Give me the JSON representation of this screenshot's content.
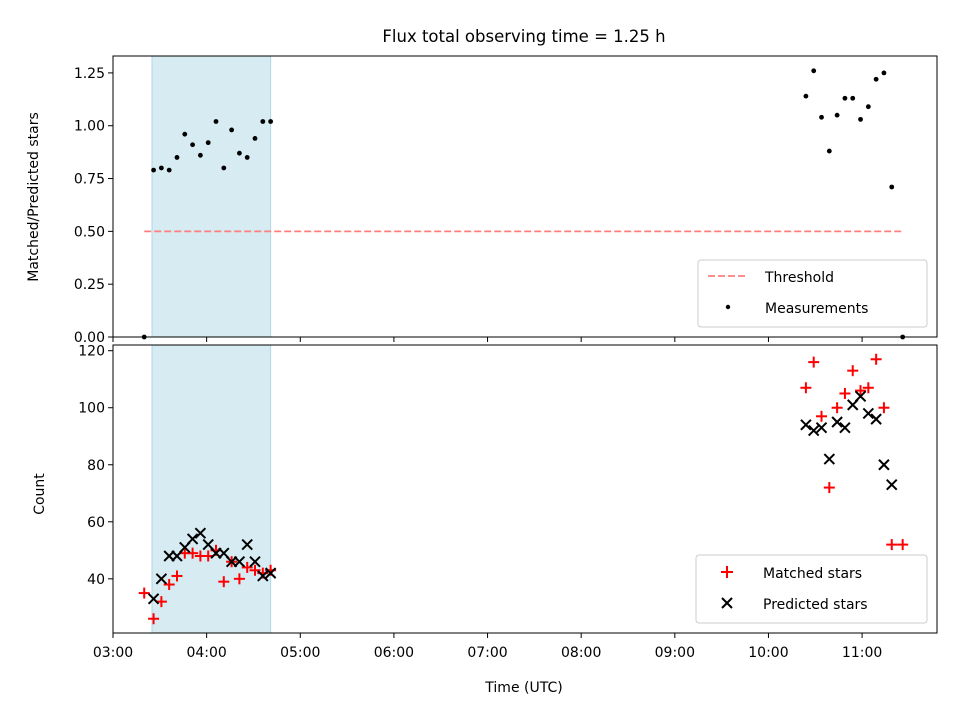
{
  "chart_data": [
    {
      "type": "scatter",
      "title": "Flux total observing time = 1.25 h",
      "xlabel": "",
      "ylabel": "Matched/Predicted stars",
      "ylim": [
        0,
        1.33
      ],
      "xlim": [
        "03:00",
        "11:48"
      ],
      "yticks": [
        "0.00",
        "0.25",
        "0.50",
        "0.75",
        "1.00",
        "1.25"
      ],
      "shaded_span": [
        "03:25",
        "04:41"
      ],
      "legend_position": "lower right",
      "threshold": {
        "name": "Threshold",
        "value": 0.5,
        "x": [
          "03:20",
          "11:26"
        ],
        "color": "#ff7f7f"
      },
      "series": [
        {
          "name": "Measurements",
          "color": "#000000",
          "x": [
            "03:20",
            "03:26",
            "03:31",
            "03:36",
            "03:41",
            "03:46",
            "03:51",
            "03:56",
            "04:01",
            "04:06",
            "04:11",
            "04:16",
            "04:21",
            "04:26",
            "04:31",
            "04:36",
            "04:41",
            "10:24",
            "10:29",
            "10:34",
            "10:39",
            "10:44",
            "10:49",
            "10:54",
            "10:59",
            "11:04",
            "11:09",
            "11:14",
            "11:19",
            "11:26"
          ],
          "values": [
            0.0,
            0.79,
            0.8,
            0.79,
            0.85,
            0.96,
            0.91,
            0.86,
            0.92,
            1.02,
            0.8,
            0.98,
            0.87,
            0.85,
            0.94,
            1.02,
            1.02,
            1.14,
            1.26,
            1.04,
            0.88,
            1.05,
            1.13,
            1.13,
            1.03,
            1.09,
            1.22,
            1.25,
            0.71,
            0.0
          ]
        }
      ]
    },
    {
      "type": "scatter",
      "xlabel": "Time (UTC)",
      "ylabel": "Count",
      "ylim": [
        21,
        122
      ],
      "xlim": [
        "03:00",
        "11:48"
      ],
      "xticks": [
        "03:00",
        "04:00",
        "05:00",
        "06:00",
        "07:00",
        "08:00",
        "09:00",
        "10:00",
        "11:00"
      ],
      "yticks": [
        "40",
        "60",
        "80",
        "100",
        "120"
      ],
      "shaded_span": [
        "03:25",
        "04:41"
      ],
      "legend_position": "lower right",
      "series": [
        {
          "name": "Matched stars",
          "marker": "+",
          "color": "#ff0000",
          "x": [
            "03:20",
            "03:26",
            "03:31",
            "03:36",
            "03:41",
            "03:46",
            "03:51",
            "03:56",
            "04:01",
            "04:06",
            "04:11",
            "04:16",
            "04:21",
            "04:26",
            "04:31",
            "04:36",
            "04:41",
            "10:24",
            "10:29",
            "10:34",
            "10:39",
            "10:44",
            "10:49",
            "10:54",
            "10:59",
            "11:04",
            "11:09",
            "11:14",
            "11:19",
            "11:26"
          ],
          "values": [
            35,
            26,
            32,
            38,
            41,
            49,
            49,
            48,
            48,
            50,
            39,
            46,
            40,
            44,
            43,
            42,
            43,
            107,
            116,
            97,
            72,
            100,
            105,
            113,
            106,
            107,
            117,
            100,
            52,
            52
          ]
        },
        {
          "name": "Predicted stars",
          "marker": "x",
          "color": "#000000",
          "x": [
            "03:26",
            "03:31",
            "03:36",
            "03:41",
            "03:46",
            "03:51",
            "03:56",
            "04:01",
            "04:06",
            "04:11",
            "04:16",
            "04:21",
            "04:26",
            "04:31",
            "04:36",
            "04:41",
            "10:24",
            "10:29",
            "10:34",
            "10:39",
            "10:44",
            "10:49",
            "10:54",
            "10:59",
            "11:04",
            "11:09",
            "11:14",
            "11:19"
          ],
          "values": [
            33,
            40,
            48,
            48,
            51,
            54,
            56,
            52,
            49,
            49,
            46,
            46,
            52,
            46,
            41,
            42,
            94,
            92,
            93,
            82,
            95,
            93,
            101,
            104,
            98,
            96,
            80,
            73
          ]
        }
      ]
    }
  ]
}
